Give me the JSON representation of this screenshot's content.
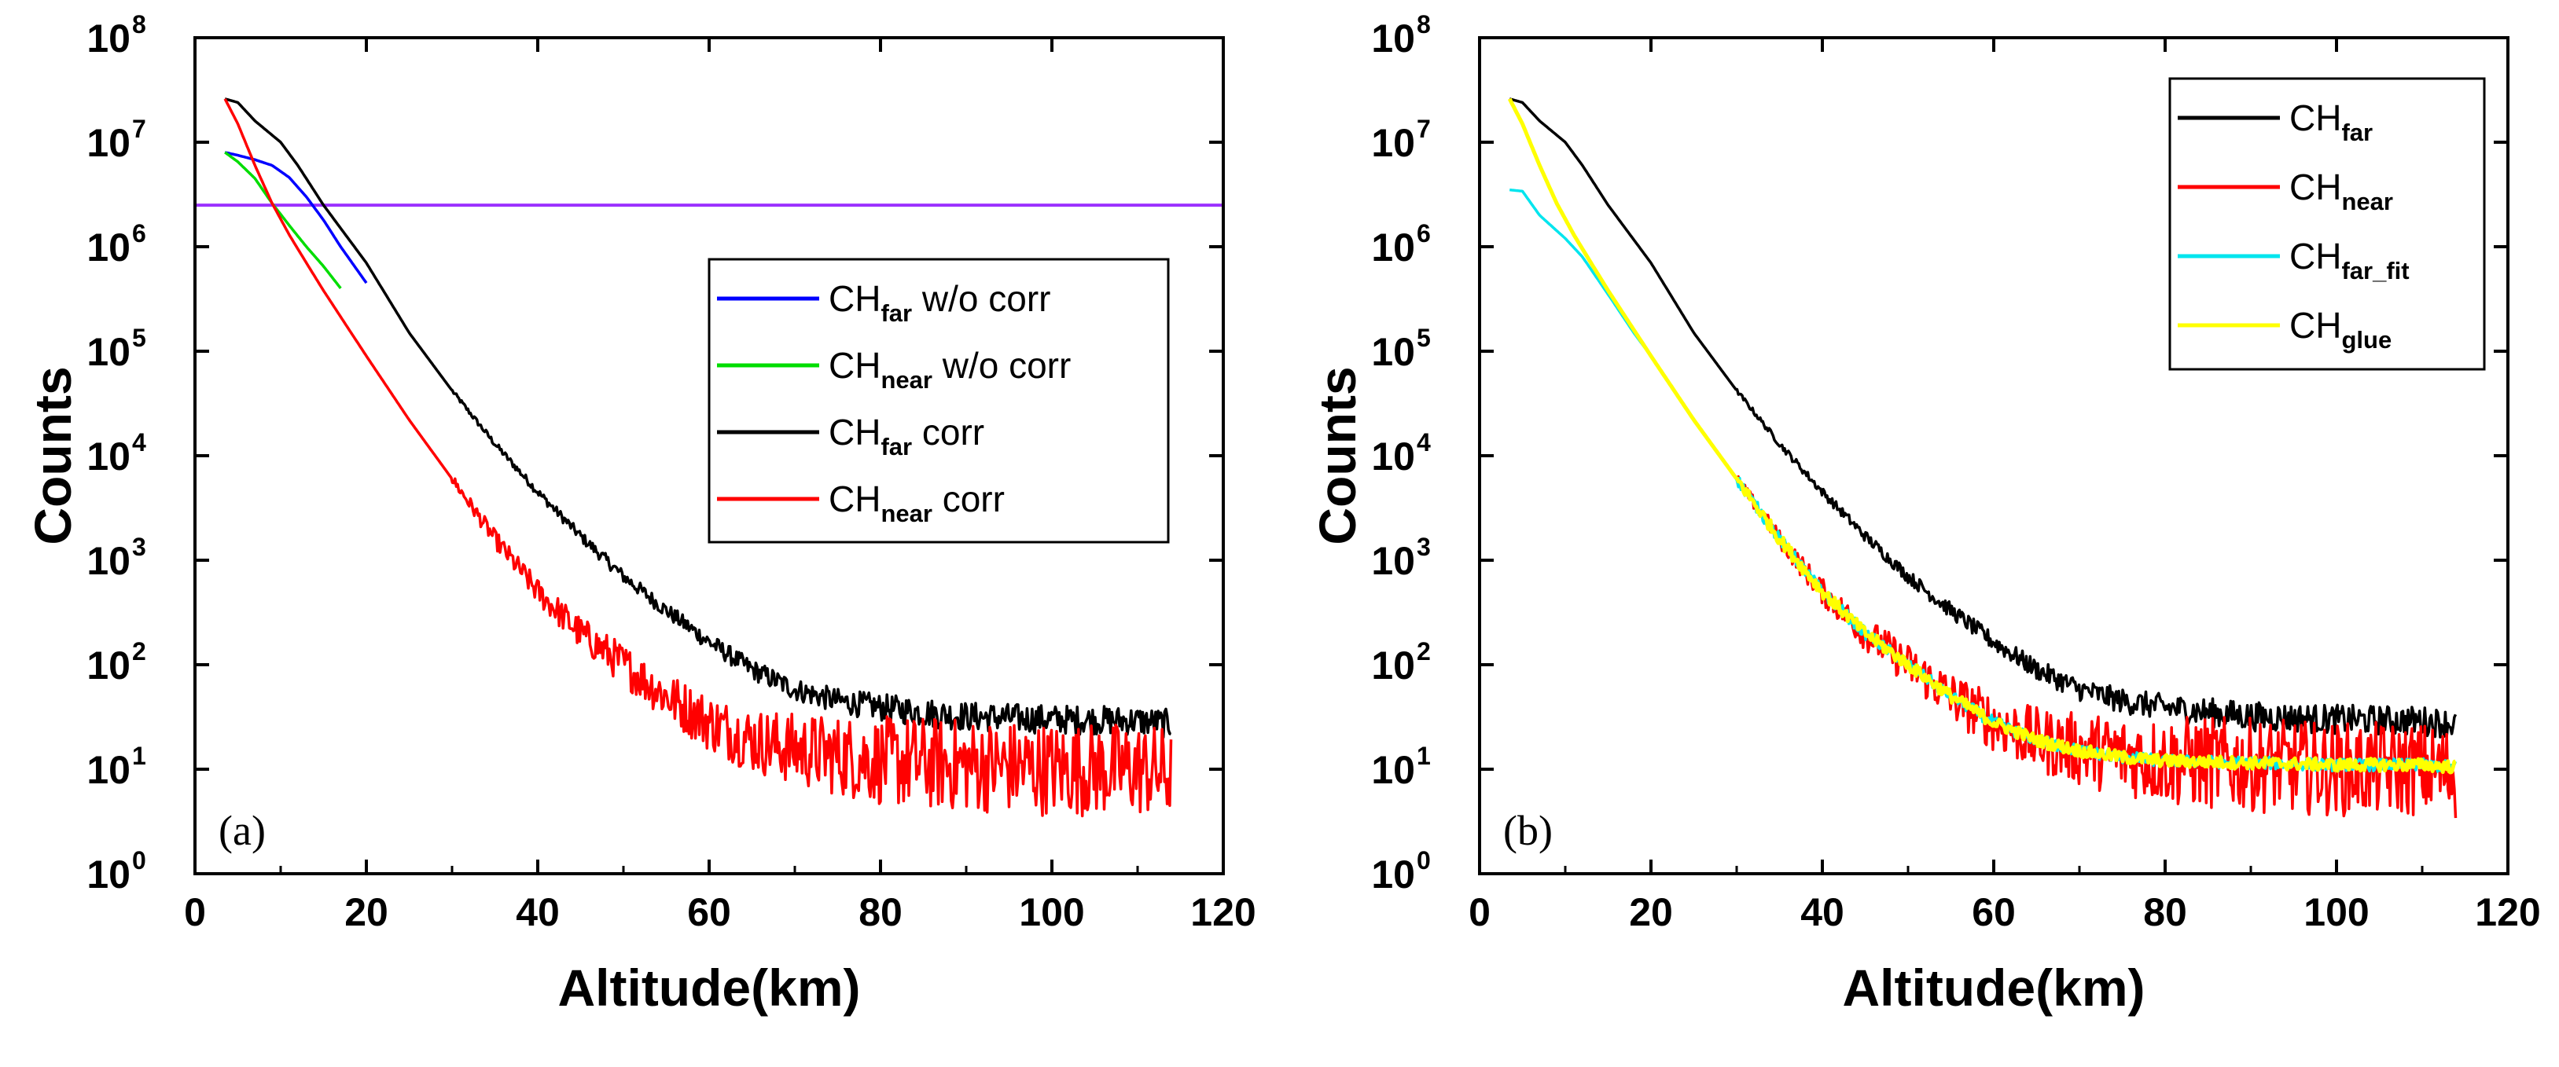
{
  "chart_data": [
    {
      "type": "line",
      "panel_label": "(a)",
      "xlabel": "Altitude(km)",
      "ylabel": "Counts",
      "xlim": [
        0,
        120
      ],
      "ylim_exponents": [
        0,
        8
      ],
      "y_scale": "log10",
      "x_ticks": [
        0,
        20,
        40,
        60,
        80,
        100,
        120
      ],
      "y_tick_base": "10",
      "y_tick_exponents": [
        "0",
        "1",
        "2",
        "3",
        "4",
        "5",
        "6",
        "7",
        "8"
      ],
      "legend_position": "middle-right",
      "horizontal_line": {
        "y": 2500000,
        "color": "#9b30ff"
      },
      "series": [
        {
          "key": "far_raw",
          "name": "CH",
          "sub": "far",
          "suffix": " w/o corr",
          "color": "#0000ff",
          "points": [
            [
              3.5,
              8000000.0
            ],
            [
              5,
              7500000.0
            ],
            [
              7,
              6800000.0
            ],
            [
              9,
              6000000.0
            ],
            [
              11,
              4600000.0
            ],
            [
              13,
              3000000.0
            ],
            [
              15,
              1800000.0
            ],
            [
              17,
              1000000.0
            ],
            [
              20,
              450000.0
            ]
          ]
        },
        {
          "key": "near_raw",
          "name": "CH",
          "sub": "near",
          "suffix": " w/o corr",
          "color": "#00dd00",
          "points": [
            [
              3.5,
              8000000.0
            ],
            [
              5,
              6500000.0
            ],
            [
              7,
              4500000.0
            ],
            [
              9,
              2600000.0
            ],
            [
              11,
              1600000.0
            ],
            [
              13,
              1000000.0
            ],
            [
              15,
              650000.0
            ],
            [
              17,
              400000.0
            ]
          ]
        },
        {
          "key": "far_corr",
          "name": "CH",
          "sub": "far",
          "suffix": " corr",
          "color": "#000000",
          "points": [
            [
              3.5,
              26000000.0
            ],
            [
              5,
              24000000.0
            ],
            [
              7,
              16000000.0
            ],
            [
              10,
              10000000.0
            ],
            [
              12,
              6000000.0
            ],
            [
              15,
              2500000.0
            ],
            [
              20,
              700000.0
            ],
            [
              25,
              150000.0
            ],
            [
              30,
              42000.0
            ],
            [
              35,
              13000.0
            ],
            [
              40,
              4500.0
            ],
            [
              45,
              1700.0
            ],
            [
              50,
              700.0
            ],
            [
              55,
              330.0
            ],
            [
              60,
              165.0
            ],
            [
              65,
              90.0
            ],
            [
              70,
              58.0
            ],
            [
              75,
              45.0
            ],
            [
              80,
              39.0
            ],
            [
              85,
              35.0
            ],
            [
              90,
              32.0
            ],
            [
              100,
              30.0
            ],
            [
              110,
              29.0
            ],
            [
              114,
              27.0
            ]
          ]
        },
        {
          "key": "near_corr",
          "name": "CH",
          "sub": "near",
          "suffix": " corr",
          "color": "#ff0000",
          "points": [
            [
              3.5,
              26000000.0
            ],
            [
              5,
              15000000.0
            ],
            [
              7,
              6000000.0
            ],
            [
              9,
              2600000.0
            ],
            [
              11,
              1300000.0
            ],
            [
              13,
              700000.0
            ],
            [
              15,
              380000.0
            ],
            [
              18,
              160000.0
            ],
            [
              20,
              90000.0
            ],
            [
              25,
              22000.0
            ],
            [
              30,
              6000.0
            ],
            [
              35,
              1600.0
            ],
            [
              40,
              500.0
            ],
            [
              45,
              200.0
            ],
            [
              50,
              100.0
            ],
            [
              55,
              50.0
            ],
            [
              60,
              28.0
            ],
            [
              65,
              19.0
            ],
            [
              70,
              15.5
            ],
            [
              75,
              13.5
            ],
            [
              80,
              12.0
            ],
            [
              90,
              11.0
            ],
            [
              100,
              10.0
            ],
            [
              110,
              10.0
            ],
            [
              114,
              9.0
            ]
          ]
        }
      ],
      "legend_order": [
        "far_raw",
        "near_raw",
        "far_corr",
        "near_corr"
      ]
    },
    {
      "type": "line",
      "panel_label": "(b)",
      "xlabel": "Altitude(km)",
      "ylabel": "Counts",
      "xlim": [
        0,
        120
      ],
      "ylim_exponents": [
        0,
        8
      ],
      "y_scale": "log10",
      "x_ticks": [
        0,
        20,
        40,
        60,
        80,
        100,
        120
      ],
      "y_tick_base": "10",
      "y_tick_exponents": [
        "0",
        "1",
        "2",
        "3",
        "4",
        "5",
        "6",
        "7",
        "8"
      ],
      "legend_position": "top-right",
      "series": [
        {
          "key": "far",
          "name": "CH",
          "sub": "far",
          "suffix": "",
          "color": "#000000",
          "points": [
            [
              3.5,
              26000000.0
            ],
            [
              5,
              24000000.0
            ],
            [
              7,
              16000000.0
            ],
            [
              10,
              10000000.0
            ],
            [
              12,
              6000000.0
            ],
            [
              15,
              2500000.0
            ],
            [
              20,
              700000.0
            ],
            [
              25,
              150000.0
            ],
            [
              30,
              42000.0
            ],
            [
              35,
              13000.0
            ],
            [
              40,
              4500.0
            ],
            [
              45,
              1700.0
            ],
            [
              50,
              700.0
            ],
            [
              55,
              330.0
            ],
            [
              60,
              165.0
            ],
            [
              65,
              90.0
            ],
            [
              70,
              58.0
            ],
            [
              75,
              45.0
            ],
            [
              80,
              39.0
            ],
            [
              85,
              35.0
            ],
            [
              90,
              32.0
            ],
            [
              100,
              30.0
            ],
            [
              110,
              29.0
            ],
            [
              114,
              27.0
            ]
          ]
        },
        {
          "key": "near",
          "name": "CH",
          "sub": "near",
          "suffix": "",
          "color": "#ff0000",
          "points": [
            [
              3.5,
              26000000.0
            ],
            [
              5,
              15000000.0
            ],
            [
              7,
              6000000.0
            ],
            [
              9,
              2600000.0
            ],
            [
              11,
              1300000.0
            ],
            [
              13,
              700000.0
            ],
            [
              15,
              380000.0
            ],
            [
              18,
              160000.0
            ],
            [
              20,
              90000.0
            ],
            [
              25,
              22000.0
            ],
            [
              30,
              6000.0
            ],
            [
              35,
              1600.0
            ],
            [
              40,
              500.0
            ],
            [
              45,
              200.0
            ],
            [
              50,
              100.0
            ],
            [
              55,
              50.0
            ],
            [
              60,
              28.0
            ],
            [
              65,
              19.0
            ],
            [
              70,
              15.5
            ],
            [
              75,
              13.5
            ],
            [
              80,
              12.0
            ],
            [
              90,
              11.0
            ],
            [
              100,
              10.0
            ],
            [
              110,
              10.0
            ],
            [
              114,
              9.0
            ]
          ]
        },
        {
          "key": "far_fit",
          "name": "CH",
          "sub": "far_fit",
          "suffix": "",
          "color": "#00e5ee",
          "points": [
            [
              3.5,
              3500000.0
            ],
            [
              5,
              3400000.0
            ],
            [
              7,
              2000000.0
            ],
            [
              10,
              1200000.0
            ],
            [
              12,
              800000.0
            ],
            [
              15,
              350000.0
            ],
            [
              18,
              150000.0
            ],
            [
              20,
              90000.0
            ],
            [
              25,
              22000.0
            ],
            [
              30,
              6000.0
            ],
            [
              35,
              1600.0
            ],
            [
              40,
              500.0
            ],
            [
              45,
              200.0
            ],
            [
              50,
              100.0
            ],
            [
              55,
              50.0
            ],
            [
              60,
              28.0
            ],
            [
              65,
              19.0
            ],
            [
              70,
              15.0
            ],
            [
              75,
              13.0
            ],
            [
              80,
              12.0
            ],
            [
              90,
              11.5
            ],
            [
              100,
              11.0
            ],
            [
              110,
              11.0
            ],
            [
              114,
              10.5
            ]
          ]
        },
        {
          "key": "glue",
          "name": "CH",
          "sub": "glue",
          "suffix": "",
          "color": "#ffff00",
          "points": [
            [
              3.5,
              26000000.0
            ],
            [
              5,
              15000000.0
            ],
            [
              7,
              6000000.0
            ],
            [
              9,
              2600000.0
            ],
            [
              11,
              1300000.0
            ],
            [
              13,
              700000.0
            ],
            [
              15,
              380000.0
            ],
            [
              18,
              160000.0
            ],
            [
              20,
              90000.0
            ],
            [
              25,
              22000.0
            ],
            [
              30,
              6000.0
            ],
            [
              35,
              1600.0
            ],
            [
              40,
              500.0
            ],
            [
              45,
              200.0
            ],
            [
              50,
              100.0
            ],
            [
              55,
              50.0
            ],
            [
              60,
              28.0
            ],
            [
              65,
              19.0
            ],
            [
              70,
              15.0
            ],
            [
              75,
              13.0
            ],
            [
              80,
              12.0
            ],
            [
              90,
              11.5
            ],
            [
              100,
              11.0
            ],
            [
              110,
              11.0
            ],
            [
              114,
              10.5
            ]
          ]
        }
      ],
      "legend_order": [
        "far",
        "near",
        "far_fit",
        "glue"
      ]
    }
  ]
}
